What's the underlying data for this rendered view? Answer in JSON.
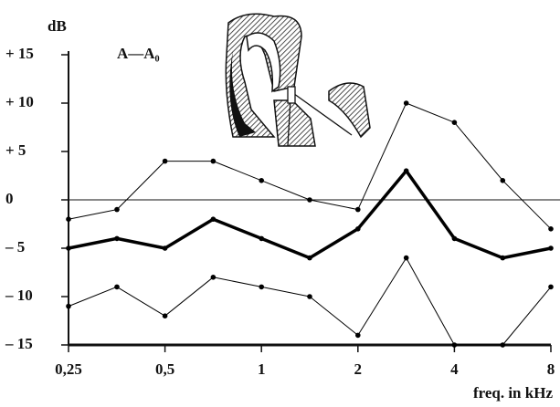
{
  "chart_data": {
    "type": "line",
    "y_label": "dB",
    "x_label": "freq. in kHz",
    "annotation": "A—A₀",
    "x": [
      0.25,
      0.354,
      0.5,
      0.707,
      1,
      1.414,
      2,
      2.83,
      4,
      5.66,
      8
    ],
    "x_log": true,
    "xlim": [
      0.25,
      8
    ],
    "xticks": [
      {
        "value": 0.25,
        "label": "0,25"
      },
      {
        "value": 0.5,
        "label": "0,5"
      },
      1,
      2,
      4,
      8
    ],
    "ylim": [
      -15,
      15
    ],
    "yticks": [
      {
        "value": 15,
        "label": "+ 15"
      },
      {
        "value": 10,
        "label": "+ 10"
      },
      {
        "value": 5,
        "label": "+ 5"
      },
      0,
      {
        "value": -5,
        "label": "– 5"
      },
      {
        "value": -10,
        "label": "– 10"
      },
      {
        "value": -15,
        "label": "– 15"
      }
    ],
    "zero_line": true,
    "series": [
      {
        "color": "#000000",
        "line_width": 1,
        "values": [
          -2,
          -1,
          4,
          4,
          2,
          0,
          -1,
          10,
          8,
          2,
          -3
        ]
      },
      {
        "color": "#000000",
        "line_width": 3.5,
        "values": [
          -5,
          -4,
          -5,
          -2,
          -4,
          -6,
          -3,
          3,
          -4,
          -6,
          -5
        ]
      },
      {
        "color": "#000000",
        "line_width": 1,
        "values": [
          -11,
          -9,
          -12,
          -8,
          -9,
          -10,
          -14,
          -6,
          -15,
          -15,
          -9
        ]
      }
    ]
  }
}
